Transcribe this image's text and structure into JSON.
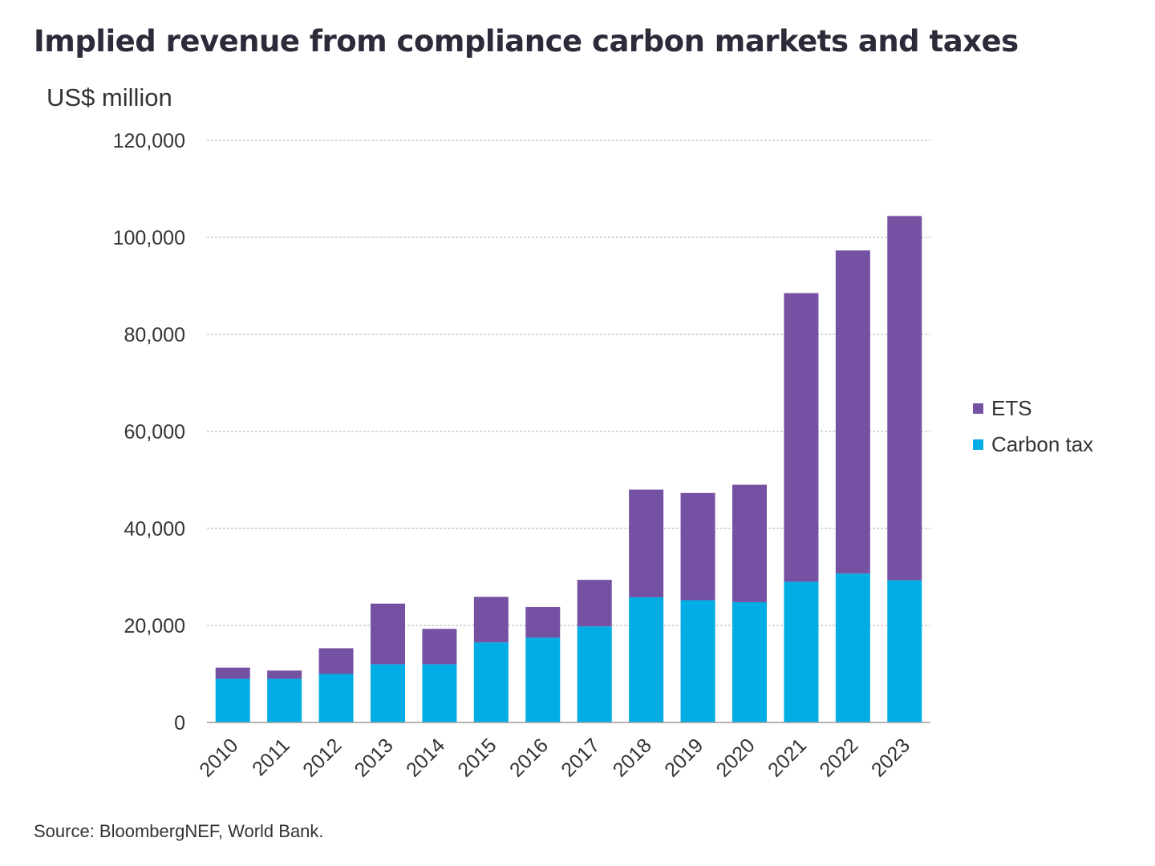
{
  "title": "Implied revenue from compliance carbon markets and taxes",
  "source": "Source: BloombergNEF, World Bank.",
  "chart_data": {
    "type": "bar",
    "stacked": true,
    "ylabel": "US$ million",
    "xlabel": "",
    "categories": [
      "2010",
      "2011",
      "2012",
      "2013",
      "2014",
      "2015",
      "2016",
      "2017",
      "2018",
      "2019",
      "2020",
      "2021",
      "2022",
      "2023"
    ],
    "series": [
      {
        "name": "Carbon tax",
        "color": "#00ADE4",
        "values": [
          9000,
          9000,
          10000,
          12000,
          12000,
          16500,
          17500,
          19800,
          25800,
          25200,
          24800,
          29000,
          30700,
          29300
        ]
      },
      {
        "name": "ETS",
        "color": "#7551A3",
        "values": [
          2300,
          1700,
          5300,
          12500,
          7300,
          9400,
          6300,
          9600,
          22200,
          22100,
          24200,
          59500,
          66600,
          75100
        ]
      }
    ],
    "ylim": [
      0,
      120000
    ],
    "yticks": [
      0,
      20000,
      40000,
      60000,
      80000,
      100000,
      120000
    ],
    "ytick_labels": [
      "0",
      "20,000",
      "40,000",
      "60,000",
      "80,000",
      "100,000",
      "120,000"
    ],
    "grid": true,
    "legend_position": "right",
    "legend_order": [
      "ETS",
      "Carbon tax"
    ]
  }
}
